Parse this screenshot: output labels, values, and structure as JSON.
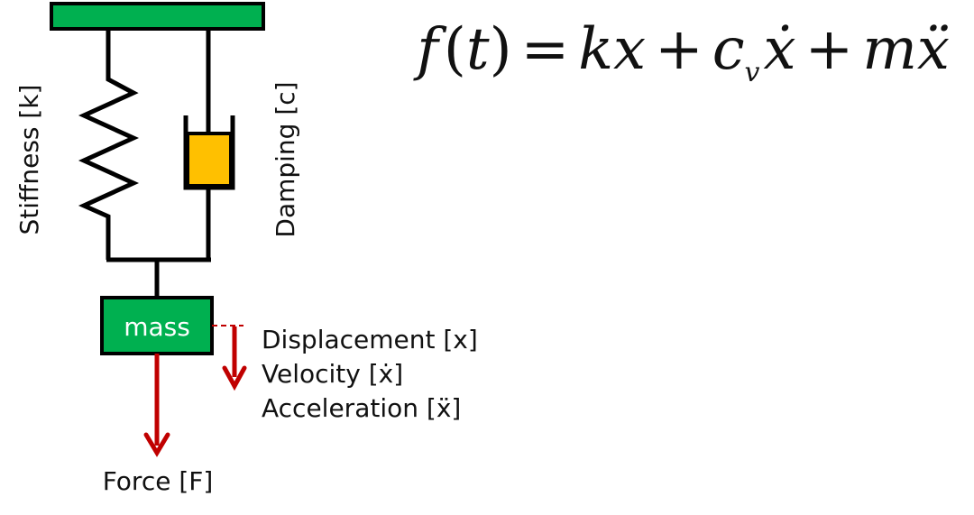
{
  "labels": {
    "stiffness": "Stiffness [k]",
    "damping": "Damping [c]",
    "mass": "mass",
    "displacement": "Displacement [x]",
    "velocity": "Velocity [ẋ]",
    "acceleration": "Acceleration [ẍ]",
    "force": "Force [F]"
  },
  "equation": {
    "lhs_fn": "f",
    "lhs_open": "(",
    "lhs_var": "t",
    "lhs_close": ")",
    "equals": "=",
    "t1": "kx",
    "plus1": "+",
    "t2": "c",
    "t2_sub": "v",
    "t2_var": "ẋ",
    "plus2": "+",
    "t3": "mẍ"
  },
  "colors": {
    "support": "#00b050",
    "mass": "#00b050",
    "damper_piston": "#ffc000",
    "arrow": "#c00000",
    "line": "#000000"
  },
  "icons": {
    "spring": "zigzag-spring-icon",
    "damper": "dashpot-icon",
    "force_arrow": "down-arrow-icon",
    "motion_arrow": "down-arrow-icon"
  }
}
